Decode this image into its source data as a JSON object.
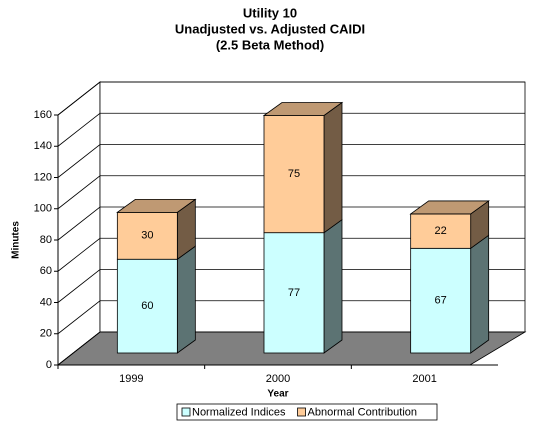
{
  "chart_data": {
    "type": "bar3d_stacked",
    "title": [
      "Utility 10",
      "Unadjusted vs. Adjusted CAIDI",
      "(2.5 Beta Method)"
    ],
    "y_label": "Minutes",
    "x_label": "Year",
    "categories": [
      "1999",
      "2000",
      "2001"
    ],
    "series": [
      {
        "name": "Normalized Indices",
        "color": "#ccffff",
        "values": [
          60,
          77,
          67
        ]
      },
      {
        "name": "Abnormal Contribution",
        "color": "#ffcc99",
        "values": [
          30,
          75,
          22
        ]
      }
    ],
    "ylim": [
      0,
      160
    ],
    "yticks": [
      0,
      20,
      40,
      60,
      80,
      100,
      120,
      140,
      160
    ],
    "grid": true,
    "legend": "bottom"
  }
}
